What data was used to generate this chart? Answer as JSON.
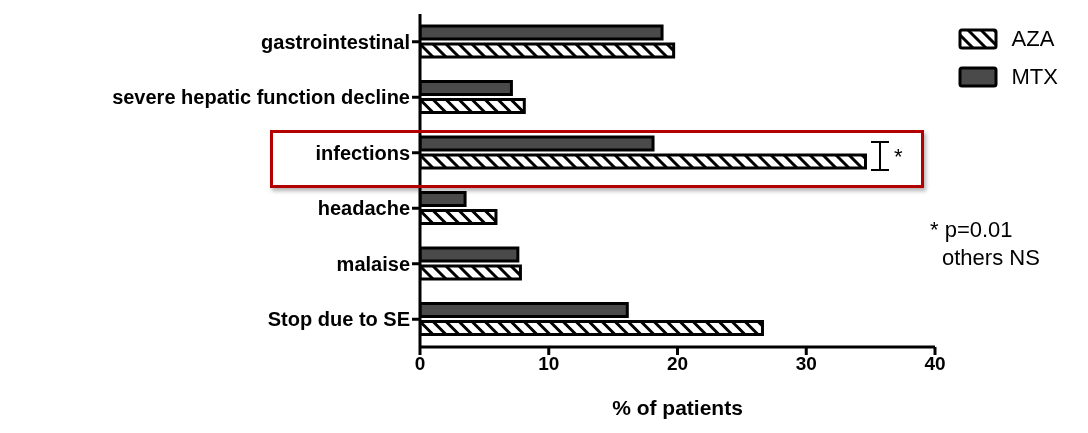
{
  "chart_data": {
    "type": "bar",
    "orientation": "horizontal",
    "xlabel": "% of patients",
    "categories": [
      "gastrointestinal",
      "severe hepatic function decline",
      "infections",
      "headache",
      "malaise",
      "Stop due to SE"
    ],
    "series": [
      {
        "name": "AZA",
        "color": "#ffffff",
        "values": [
          19.7,
          8.1,
          34.6,
          5.9,
          7.8,
          26.6
        ]
      },
      {
        "name": "MTX",
        "color": "#4a4a4a",
        "values": [
          18.8,
          7.1,
          18.1,
          3.5,
          7.6,
          16.1
        ]
      }
    ],
    "xlim": [
      0,
      40
    ],
    "xticks": [
      0,
      10,
      20,
      30,
      40
    ],
    "legend": "top right",
    "annotations": [
      "*",
      "* p=0.01",
      "others NS"
    ]
  }
}
